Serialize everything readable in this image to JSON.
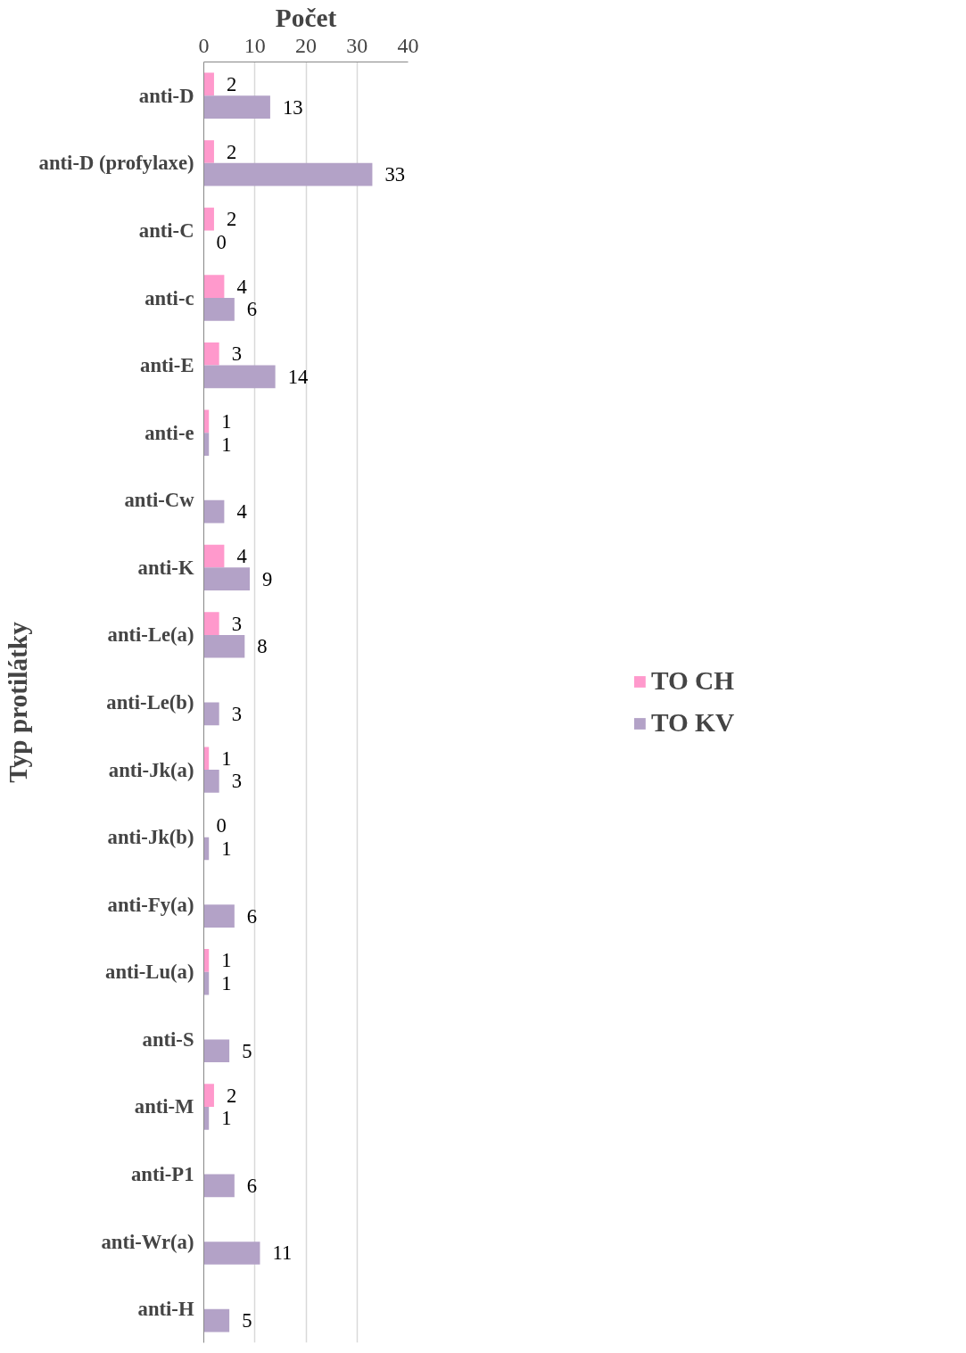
{
  "chart_data": {
    "type": "bar",
    "orientation": "horizontal",
    "xlabel": "Počet",
    "ylabel": "Typ protilátky",
    "categories": [
      "anti-D",
      "anti-D (profylaxe)",
      "anti-C",
      "anti-c",
      "anti-E",
      "anti-e",
      "anti-Cw",
      "anti-K",
      "anti-Le(a)",
      "anti-Le(b)",
      "anti-Jk(a)",
      "anti-Jk(b)",
      "anti-Fy(a)",
      "anti-Lu(a)",
      "anti-S",
      "anti-M",
      "anti-P1",
      "anti-Wr(a)",
      "anti-H"
    ],
    "series": [
      {
        "name": "TO CH",
        "color": "#ff99cc",
        "values": [
          2,
          2,
          2,
          4,
          3,
          1,
          null,
          4,
          3,
          null,
          1,
          0,
          null,
          1,
          null,
          2,
          null,
          null,
          null
        ]
      },
      {
        "name": "TO KV",
        "color": "#b3a2c7",
        "values": [
          13,
          33,
          0,
          6,
          14,
          1,
          4,
          9,
          8,
          3,
          3,
          1,
          6,
          1,
          5,
          1,
          6,
          11,
          5
        ]
      }
    ],
    "xlim": [
      0,
      40
    ],
    "xticks": [
      0,
      10,
      20,
      30,
      40
    ],
    "grid": "x",
    "legend": "right",
    "data_labels": true
  }
}
